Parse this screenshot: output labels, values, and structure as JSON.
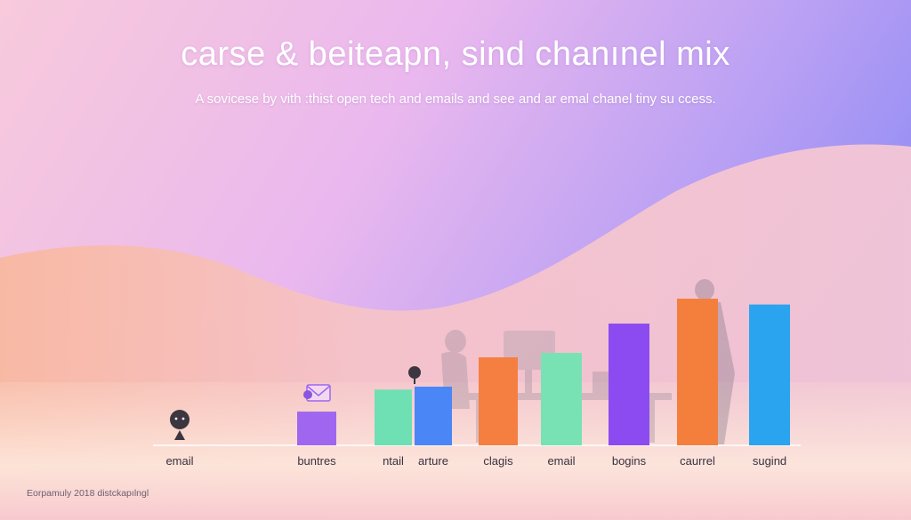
{
  "title": "carse & beiteapn, sind chanınel mix",
  "subtitle": "A sovicese by vith :thist open tech and emails and see and ar emal chanel tiny su ccess.",
  "footer": "Eorpamuly 2018 distckapılngl",
  "colors": {
    "bg_top_left": "#f6c6df",
    "bg_top_right": "#9c8ff5",
    "bg_bottom": "#fbe0cf",
    "wave": "#f9c9c9"
  },
  "chart_data": {
    "type": "bar",
    "categories": [
      "email",
      "buntres",
      "ntail",
      "arture",
      "clagis",
      "email",
      "bogins",
      "caurrel",
      "sugind"
    ],
    "values": [
      0,
      23,
      38,
      40,
      60,
      63,
      83,
      100,
      96
    ],
    "colors": [
      "#888888",
      "#a066f0",
      "#6ee0b4",
      "#4a86f5",
      "#f57f40",
      "#78e2b4",
      "#8c4bf0",
      "#f47f3c",
      "#2aa4ee"
    ],
    "ylim": [
      0,
      100
    ],
    "grid": false,
    "legend": "none",
    "xlabel": "",
    "ylabel": ""
  }
}
